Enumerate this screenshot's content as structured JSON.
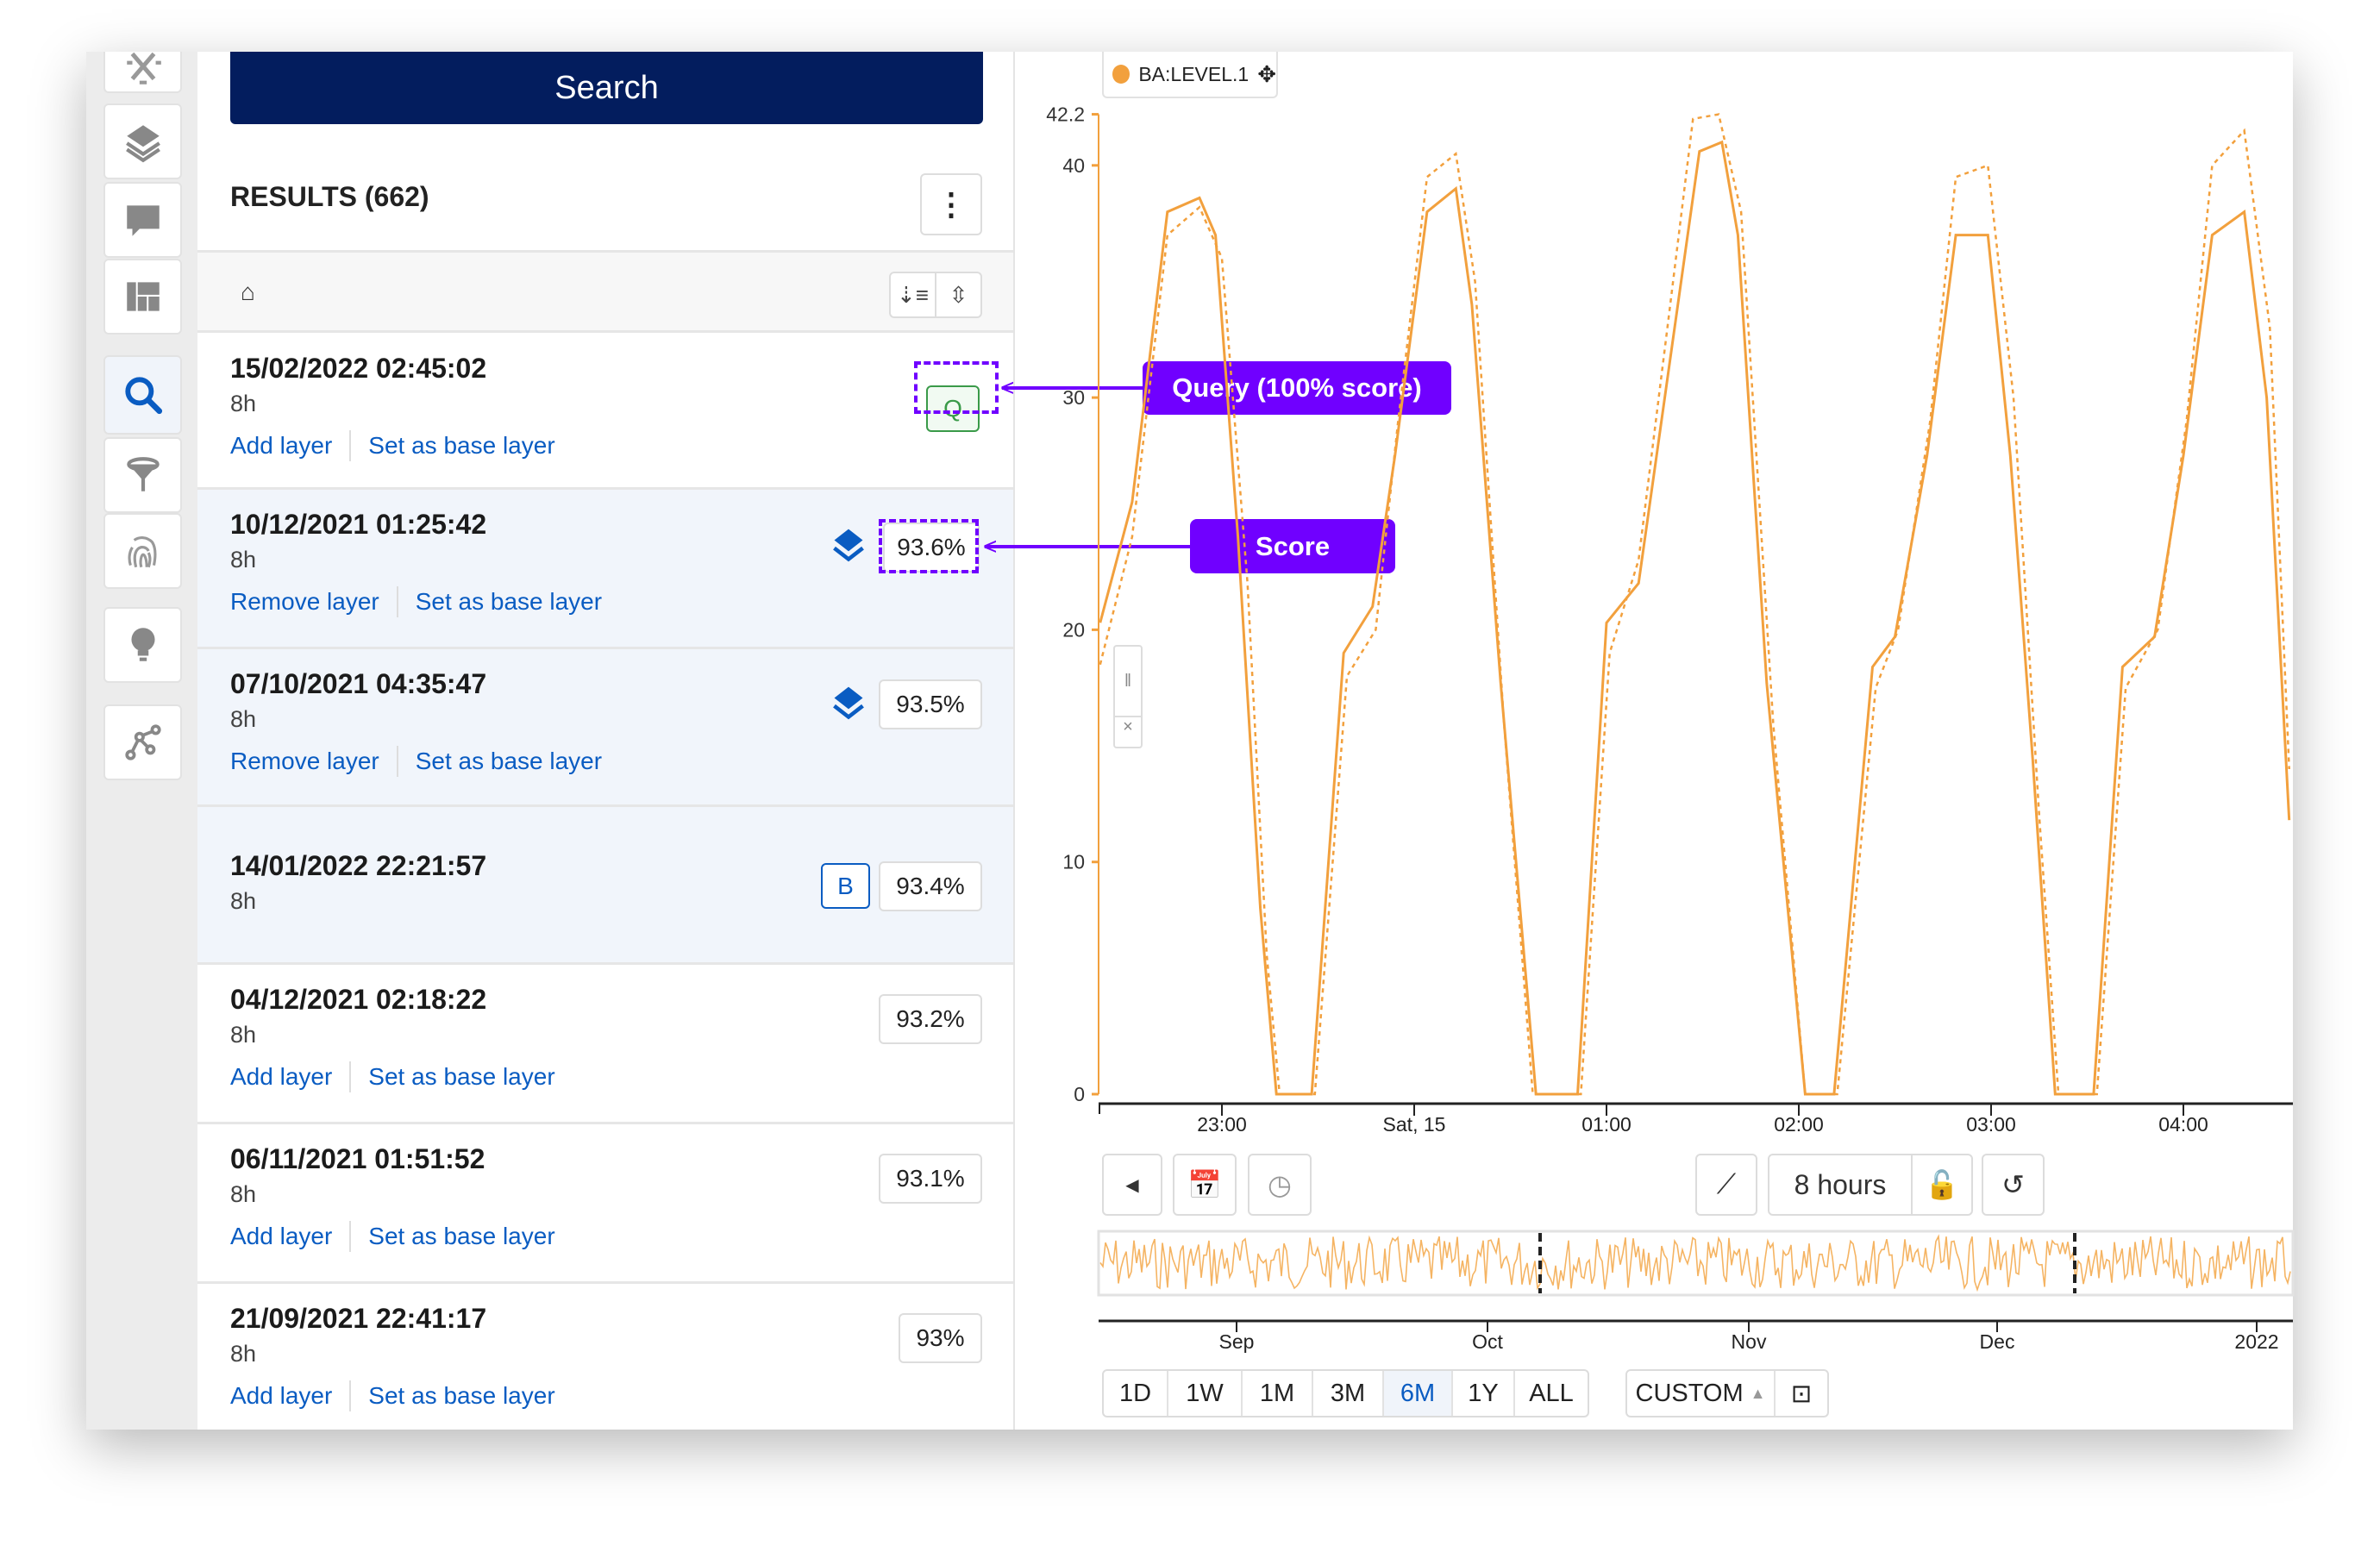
{
  "sidebar": {
    "items": [
      {
        "icon": "tools-icon"
      },
      {
        "icon": "layers-icon"
      },
      {
        "icon": "comment-icon"
      },
      {
        "icon": "dashboard-icon"
      },
      {
        "icon": "search-icon",
        "active": true
      },
      {
        "icon": "filter-icon"
      },
      {
        "icon": "fingerprint-icon"
      },
      {
        "icon": "lightbulb-icon"
      },
      {
        "icon": "graph-icon"
      }
    ]
  },
  "results": {
    "search_label": "Search",
    "title": "RESULTS (662)",
    "menu_icon": "⋮",
    "home_icon": "⌂",
    "rows": [
      {
        "date": "15/02/2022 02:45:02",
        "duration": "8h",
        "badge": "Q",
        "link1": "Add layer",
        "link2": "Set as base layer"
      },
      {
        "date": "10/12/2021 01:25:42",
        "duration": "8h",
        "score": "93.6%",
        "layer": true,
        "link1": "Remove layer",
        "link2": "Set as base layer"
      },
      {
        "date": "07/10/2021 04:35:47",
        "duration": "8h",
        "score": "93.5%",
        "layer": true,
        "link1": "Remove layer",
        "link2": "Set as base layer"
      },
      {
        "date": "14/01/2022 22:21:57",
        "duration": "8h",
        "score": "93.4%",
        "badge": "B"
      },
      {
        "date": "04/12/2021 02:18:22",
        "duration": "8h",
        "score": "93.2%",
        "link1": "Add layer",
        "link2": "Set as base layer"
      },
      {
        "date": "06/11/2021 01:51:52",
        "duration": "8h",
        "score": "93.1%",
        "link1": "Add layer",
        "link2": "Set as base layer"
      },
      {
        "date": "21/09/2021 22:41:17",
        "duration": "8h",
        "score": "93%",
        "link1": "Add layer",
        "link2": "Set as base layer"
      }
    ]
  },
  "annotations": {
    "query": "Query (100% score)",
    "score": "Score",
    "color": "#7000ff"
  },
  "chart": {
    "legend": "BA:LEVEL.1",
    "controls": {
      "duration": "8 hours"
    },
    "ranges": [
      "1D",
      "1W",
      "1M",
      "3M",
      "6M",
      "1Y",
      "ALL"
    ],
    "active_range": "6M",
    "custom": "CUSTOM",
    "navigator_labels": [
      "Sep",
      "Oct",
      "Nov",
      "Dec",
      "2022"
    ]
  },
  "chart_data": {
    "type": "line",
    "series_color": "#f2a03d",
    "y_ticks": [
      "0",
      "10",
      "20",
      "30",
      "40",
      "42.2"
    ],
    "x_ticks": [
      "23:00",
      "Sat, 15",
      "01:00",
      "02:00",
      "03:00",
      "04:00"
    ],
    "ylim": [
      0,
      42.2
    ],
    "grid": false,
    "legend": "top-left",
    "series": [
      {
        "name": "BA:LEVEL.1",
        "style": "solid",
        "points": [
          [
            "22:22",
            20.3
          ],
          [
            "22:32",
            25.5
          ],
          [
            "22:43",
            38
          ],
          [
            "22:53",
            38.6
          ],
          [
            "22:58",
            37
          ],
          [
            "23:05",
            24
          ],
          [
            "23:12",
            8
          ],
          [
            "23:17",
            0
          ],
          [
            "23:28",
            0
          ],
          [
            "23:38",
            19
          ],
          [
            "23:47",
            21
          ],
          [
            "23:54",
            27.5
          ],
          [
            "00:04",
            38
          ],
          [
            "00:13",
            39
          ],
          [
            "00:18",
            34
          ],
          [
            "00:27",
            17.7
          ],
          [
            "00:38",
            0
          ],
          [
            "00:51",
            0
          ],
          [
            "01:00",
            20.3
          ],
          [
            "01:10",
            22
          ],
          [
            "01:19",
            30.8
          ],
          [
            "01:29",
            40.6
          ],
          [
            "01:36",
            41
          ],
          [
            "01:41",
            37
          ],
          [
            "01:50",
            17.7
          ],
          [
            "02:02",
            0
          ],
          [
            "02:11",
            0
          ],
          [
            "02:23",
            18.4
          ],
          [
            "02:30",
            19.7
          ],
          [
            "02:40",
            27.5
          ],
          [
            "02:49",
            37
          ],
          [
            "02:59",
            37
          ],
          [
            "03:06",
            27.5
          ],
          [
            "03:13",
            14.4
          ],
          [
            "03:20",
            0
          ],
          [
            "03:32",
            0
          ],
          [
            "03:41",
            18.4
          ],
          [
            "03:51",
            19.7
          ],
          [
            "04:00",
            27.5
          ],
          [
            "04:09",
            37
          ],
          [
            "04:19",
            38
          ],
          [
            "04:26",
            30
          ],
          [
            "04:33",
            11.8
          ]
        ]
      },
      {
        "name": "BA:LEVEL.1",
        "style": "dotted",
        "points": [
          [
            "22:22",
            18.5
          ],
          [
            "22:32",
            24
          ],
          [
            "22:43",
            37
          ],
          [
            "22:53",
            38.2
          ],
          [
            "23:00",
            36
          ],
          [
            "23:08",
            22
          ],
          [
            "23:14",
            6
          ],
          [
            "23:18",
            0
          ],
          [
            "23:29",
            0
          ],
          [
            "23:39",
            18
          ],
          [
            "23:48",
            20
          ],
          [
            "23:55",
            29
          ],
          [
            "00:04",
            39.5
          ],
          [
            "00:13",
            40.5
          ],
          [
            "00:19",
            35
          ],
          [
            "00:28",
            16
          ],
          [
            "00:37",
            0
          ],
          [
            "00:52",
            0
          ],
          [
            "01:01",
            19
          ],
          [
            "01:10",
            23
          ],
          [
            "01:19",
            33
          ],
          [
            "01:27",
            42
          ],
          [
            "01:35",
            42.2
          ],
          [
            "01:42",
            38
          ],
          [
            "01:52",
            16
          ],
          [
            "02:02",
            0
          ],
          [
            "02:12",
            0
          ],
          [
            "02:24",
            17.5
          ],
          [
            "02:31",
            20
          ],
          [
            "02:41",
            29
          ],
          [
            "02:49",
            39.5
          ],
          [
            "02:59",
            40
          ],
          [
            "03:07",
            30
          ],
          [
            "03:15",
            12
          ],
          [
            "03:21",
            0
          ],
          [
            "03:33",
            0
          ],
          [
            "03:42",
            17.5
          ],
          [
            "03:52",
            20
          ],
          [
            "04:01",
            29
          ],
          [
            "04:09",
            40
          ],
          [
            "04:19",
            41.5
          ],
          [
            "04:27",
            33
          ],
          [
            "04:33",
            14
          ]
        ]
      }
    ]
  }
}
